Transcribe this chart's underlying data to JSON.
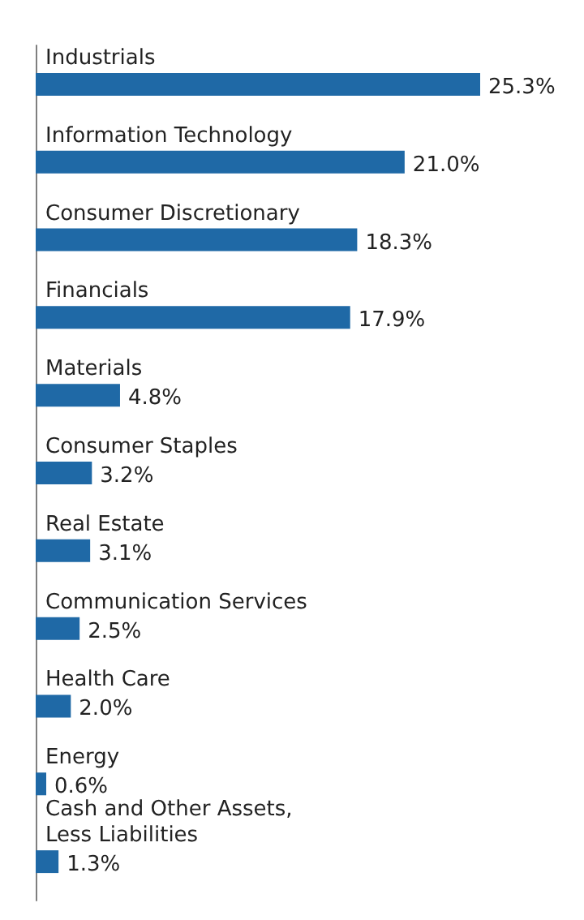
{
  "chart_data": {
    "type": "bar",
    "orientation": "horizontal",
    "categories": [
      "Industrials",
      "Information Technology",
      "Consumer Discretionary",
      "Financials",
      "Materials",
      "Consumer Staples",
      "Real Estate",
      "Communication Services",
      "Health Care",
      "Energy",
      "Cash and Other Assets, Less Liabilities"
    ],
    "values": [
      25.3,
      21.0,
      18.3,
      17.9,
      4.8,
      3.2,
      3.1,
      2.5,
      2.0,
      0.6,
      1.3
    ],
    "value_labels": [
      "25.3%",
      "21.0%",
      "18.3%",
      "17.9%",
      "4.8%",
      "3.2%",
      "3.1%",
      "2.5%",
      "2.0%",
      "0.6%",
      "1.3%"
    ],
    "color": "#1f69a6"
  }
}
